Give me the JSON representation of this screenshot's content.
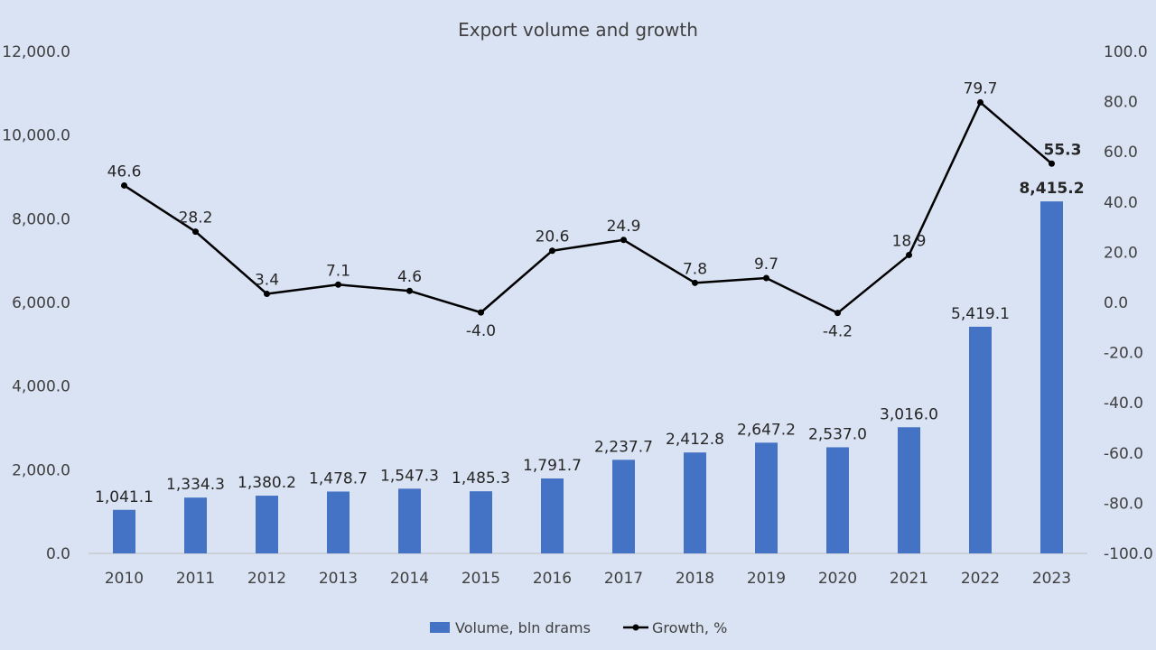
{
  "chart_data": {
    "type": "bar+line",
    "title": "Export volume and growth",
    "categories": [
      "2010",
      "2011",
      "2012",
      "2013",
      "2014",
      "2015",
      "2016",
      "2017",
      "2018",
      "2019",
      "2020",
      "2021",
      "2022",
      "2023"
    ],
    "series": [
      {
        "name": "Volume, bln drams",
        "type": "bar",
        "axis": "left",
        "color": "#4472c4",
        "values": [
          1041.1,
          1334.3,
          1380.2,
          1478.7,
          1547.3,
          1485.3,
          1791.7,
          2237.7,
          2412.8,
          2647.2,
          2537.0,
          3016.0,
          5419.1,
          8415.2
        ],
        "labels": [
          "1,041.1",
          "1,334.3",
          "1,380.2",
          "1,478.7",
          "1,547.3",
          "1,485.3",
          "1,791.7",
          "2,237.7",
          "2,412.8",
          "2,647.2",
          "2,537.0",
          "3,016.0",
          "5,419.1",
          "8,415.2"
        ]
      },
      {
        "name": "Growth, %",
        "type": "line",
        "axis": "right",
        "color": "#000000",
        "values": [
          46.6,
          28.2,
          3.4,
          7.1,
          4.6,
          -4.0,
          20.6,
          24.9,
          7.8,
          9.7,
          -4.2,
          18.9,
          79.7,
          55.3
        ],
        "labels": [
          "46.6",
          "28.2",
          "3.4",
          "7.1",
          "4.6",
          "-4.0",
          "20.6",
          "24.9",
          "7.8",
          "9.7",
          "-4.2",
          "18.9",
          "79.7",
          "55.3"
        ],
        "label_below": [
          false,
          false,
          false,
          false,
          false,
          true,
          false,
          false,
          false,
          false,
          true,
          false,
          false,
          false
        ]
      }
    ],
    "highlight_color": "#ff0000",
    "highlight_index": 13,
    "y_left": {
      "lim": [
        0,
        12000
      ],
      "ticks": [
        0,
        2000,
        4000,
        6000,
        8000,
        10000,
        12000
      ],
      "tick_labels": [
        "0.0",
        "2,000.0",
        "4,000.0",
        "6,000.0",
        "8,000.0",
        "10,000.0",
        "12,000.0"
      ]
    },
    "y_right": {
      "lim": [
        -100,
        100
      ],
      "ticks": [
        -100,
        -80,
        -60,
        -40,
        -20,
        0,
        20,
        40,
        60,
        80,
        100
      ],
      "tick_labels": [
        "-100.0",
        "-80.0",
        "-60.0",
        "-40.0",
        "-20.0",
        "0.0",
        "20.0",
        "40.0",
        "60.0",
        "80.0",
        "100.0"
      ]
    },
    "legend": {
      "position": "bottom",
      "items": [
        "Volume, bln drams",
        "Growth, %"
      ]
    },
    "grid": false
  }
}
